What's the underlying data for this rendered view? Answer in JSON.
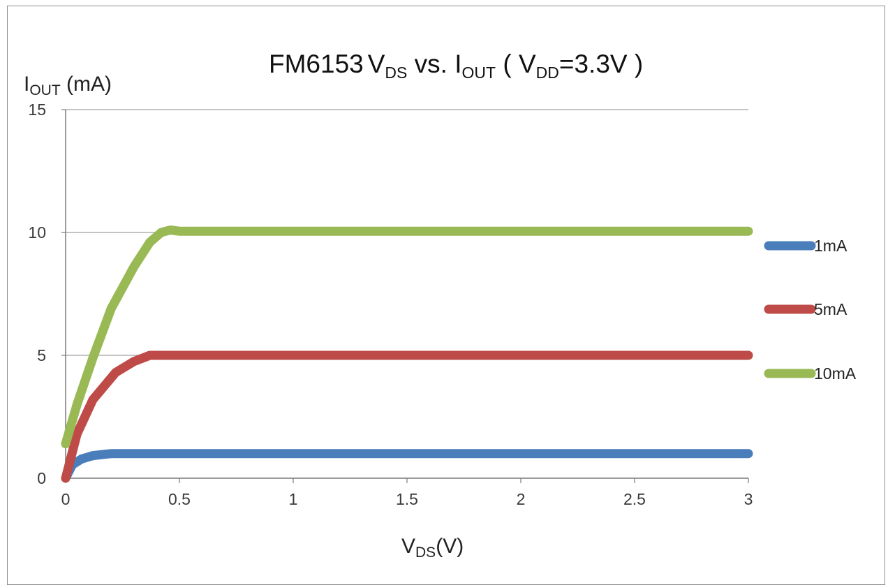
{
  "chart_data": {
    "type": "line",
    "title": {
      "prefix": "FM6153",
      "v": "V",
      "v_sub": "DS",
      "mid": " vs. I",
      "i_sub": "OUT",
      "paren_open": " ( V",
      "vdd_sub": "DD",
      "tail": "=3.3V )"
    },
    "ylabel": {
      "main": "I",
      "sub": "OUT",
      "unit": " (mA)"
    },
    "xlabel": {
      "main": "V",
      "sub": "DS",
      "unit": "(V)"
    },
    "xlim": [
      0,
      3
    ],
    "ylim": [
      0,
      15
    ],
    "x_ticks": [
      "0",
      "0.5",
      "1",
      "1.5",
      "2",
      "2.5",
      "3"
    ],
    "y_ticks": [
      "0",
      "5",
      "10",
      "15"
    ],
    "x_tick_values": [
      0,
      0.5,
      1,
      1.5,
      2,
      2.5,
      3
    ],
    "y_tick_values": [
      0,
      5,
      10,
      15
    ],
    "grid": "horizontal",
    "legend_position": "right",
    "series": [
      {
        "name": "1mA",
        "color": "#4a7ebb",
        "x": [
          0,
          0.03,
          0.07,
          0.12,
          0.2,
          0.3,
          0.5,
          1,
          1.5,
          2,
          2.5,
          3
        ],
        "y": [
          0,
          0.55,
          0.78,
          0.92,
          1.0,
          1.0,
          1.0,
          1.0,
          1.0,
          1.0,
          1.0,
          1.0
        ]
      },
      {
        "name": "5mA",
        "color": "#be4b48",
        "x": [
          0,
          0.05,
          0.12,
          0.22,
          0.3,
          0.37,
          0.45,
          1,
          1.5,
          2,
          2.5,
          3
        ],
        "y": [
          0,
          1.8,
          3.2,
          4.3,
          4.75,
          5.0,
          5.0,
          5.0,
          5.0,
          5.0,
          5.0,
          5.0
        ]
      },
      {
        "name": "10mA",
        "color": "#98b954",
        "x": [
          0,
          0.05,
          0.12,
          0.2,
          0.3,
          0.37,
          0.42,
          0.46,
          0.5,
          1,
          1.5,
          2,
          2.5,
          3
        ],
        "y": [
          1.4,
          3.0,
          4.9,
          6.9,
          8.6,
          9.6,
          10.0,
          10.1,
          10.05,
          10.05,
          10.05,
          10.05,
          10.05,
          10.05
        ]
      }
    ]
  }
}
